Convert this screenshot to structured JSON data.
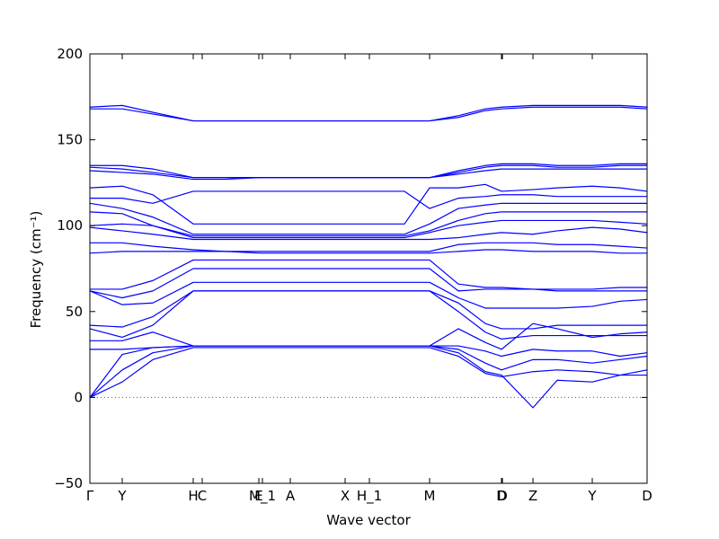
{
  "chart_data": {
    "type": "line",
    "xlabel": "Wave vector",
    "ylabel": "Frequency (cm⁻¹)",
    "xlim": [
      0,
      6.2
    ],
    "ylim": [
      -50,
      200
    ],
    "xticks": [
      {
        "value": 0,
        "label": "Γ"
      },
      {
        "value": 0.36,
        "label": "Y"
      },
      {
        "value": 1.15,
        "label": "H"
      },
      {
        "value": 1.25,
        "label": "C"
      },
      {
        "value": 1.88,
        "label": "E"
      },
      {
        "value": 1.92,
        "label": "M_1"
      },
      {
        "value": 2.23,
        "label": "A"
      },
      {
        "value": 2.84,
        "label": "X"
      },
      {
        "value": 3.11,
        "label": "H_1"
      },
      {
        "value": 3.78,
        "label": "M"
      },
      {
        "value": 4.58,
        "label": "D"
      },
      {
        "value": 4.59,
        "label": "D"
      },
      {
        "value": 4.93,
        "label": "Z"
      },
      {
        "value": 5.59,
        "label": "Y"
      },
      {
        "value": 6.2,
        "label": "D"
      }
    ],
    "yticks": [
      {
        "value": -50,
        "label": "−50"
      },
      0,
      50,
      100,
      150,
      200
    ],
    "hline": 0,
    "color": "#0000ff",
    "x": [
      0,
      0.36,
      0.7,
      1.15,
      1.5,
      1.9,
      2.3,
      2.84,
      3.11,
      3.5,
      3.78,
      4.1,
      4.4,
      4.58,
      4.93,
      5.2,
      5.59,
      5.9,
      6.2
    ],
    "series": [
      {
        "values": [
          169,
          170,
          166,
          161,
          161,
          161,
          161,
          161,
          161,
          161,
          161,
          164,
          168,
          169,
          170,
          170,
          170,
          170,
          169
        ]
      },
      {
        "values": [
          168,
          168,
          165,
          161,
          161,
          161,
          161,
          161,
          161,
          161,
          161,
          163,
          167,
          168,
          169,
          169,
          169,
          169,
          168
        ]
      },
      {
        "values": [
          135,
          135,
          133,
          128,
          128,
          128,
          128,
          128,
          128,
          128,
          128,
          132,
          135,
          136,
          136,
          135,
          135,
          136,
          136
        ]
      },
      {
        "values": [
          134,
          133,
          131,
          128,
          128,
          128,
          128,
          128,
          128,
          128,
          128,
          131,
          134,
          135,
          135,
          134,
          134,
          135,
          135
        ]
      },
      {
        "values": [
          132,
          131,
          130,
          127,
          127,
          128,
          128,
          128,
          128,
          128,
          128,
          130,
          132,
          133,
          133,
          133,
          133,
          133,
          133
        ]
      },
      {
        "values": [
          122,
          123,
          118,
          101,
          101,
          101,
          101,
          101,
          101,
          101,
          122,
          122,
          124,
          120,
          121,
          122,
          123,
          122,
          120
        ]
      },
      {
        "values": [
          116,
          116,
          113,
          120,
          120,
          120,
          120,
          120,
          120,
          120,
          110,
          116,
          117,
          118,
          118,
          117,
          117,
          117,
          117
        ]
      },
      {
        "values": [
          113,
          110,
          105,
          95,
          95,
          95,
          95,
          95,
          95,
          95,
          101,
          110,
          112,
          113,
          113,
          113,
          113,
          113,
          113
        ]
      },
      {
        "values": [
          108,
          107,
          100,
          94,
          94,
          94,
          94,
          94,
          94,
          94,
          97,
          103,
          107,
          108,
          108,
          108,
          108,
          108,
          108
        ]
      },
      {
        "values": [
          100,
          101,
          100,
          93,
          93,
          93,
          93,
          93,
          93,
          93,
          96,
          100,
          102,
          103,
          103,
          103,
          103,
          102,
          101
        ]
      },
      {
        "values": [
          99,
          97,
          95,
          92,
          92,
          92,
          92,
          92,
          92,
          92,
          92,
          93,
          95,
          96,
          95,
          97,
          99,
          98,
          96
        ]
      },
      {
        "values": [
          90,
          90,
          88,
          86,
          85,
          85,
          85,
          85,
          85,
          85,
          85,
          89,
          90,
          90,
          90,
          89,
          89,
          88,
          87
        ]
      },
      {
        "values": [
          84,
          85,
          85,
          85,
          85,
          84,
          84,
          84,
          84,
          84,
          84,
          85,
          86,
          86,
          85,
          85,
          85,
          84,
          84
        ]
      },
      {
        "values": [
          63,
          63,
          68,
          80,
          80,
          80,
          80,
          80,
          80,
          80,
          80,
          66,
          64,
          64,
          63,
          63,
          63,
          64,
          64
        ]
      },
      {
        "values": [
          62,
          58,
          62,
          75,
          75,
          75,
          75,
          75,
          75,
          75,
          75,
          62,
          63,
          63,
          63,
          62,
          62,
          62,
          62
        ]
      },
      {
        "values": [
          62,
          54,
          55,
          67,
          67,
          67,
          67,
          67,
          67,
          67,
          67,
          58,
          52,
          52,
          52,
          52,
          53,
          56,
          57
        ]
      },
      {
        "values": [
          42,
          41,
          47,
          62,
          62,
          62,
          62,
          62,
          62,
          62,
          62,
          55,
          43,
          40,
          40,
          42,
          42,
          42,
          42
        ]
      },
      {
        "values": [
          40,
          35,
          42,
          62,
          62,
          62,
          62,
          62,
          62,
          62,
          62,
          50,
          38,
          34,
          36,
          36,
          36,
          36,
          36
        ]
      },
      {
        "values": [
          33,
          33,
          38,
          30,
          30,
          30,
          30,
          30,
          30,
          30,
          30,
          40,
          32,
          28,
          43,
          40,
          35,
          37,
          38
        ]
      },
      {
        "values": [
          28,
          28,
          29,
          30,
          30,
          30,
          30,
          30,
          30,
          30,
          30,
          30,
          27,
          24,
          28,
          27,
          27,
          24,
          26
        ]
      },
      {
        "values": [
          0,
          25,
          29,
          30,
          30,
          30,
          30,
          30,
          30,
          30,
          30,
          28,
          20,
          16,
          22,
          22,
          20,
          22,
          24
        ]
      },
      {
        "values": [
          0,
          16,
          26,
          30,
          30,
          30,
          30,
          30,
          30,
          30,
          30,
          26,
          15,
          13,
          -6,
          10,
          9,
          13,
          16
        ]
      },
      {
        "values": [
          0,
          9,
          22,
          29,
          29,
          29,
          29,
          29,
          29,
          29,
          29,
          24,
          14,
          12,
          15,
          16,
          15,
          13,
          13
        ]
      }
    ]
  }
}
